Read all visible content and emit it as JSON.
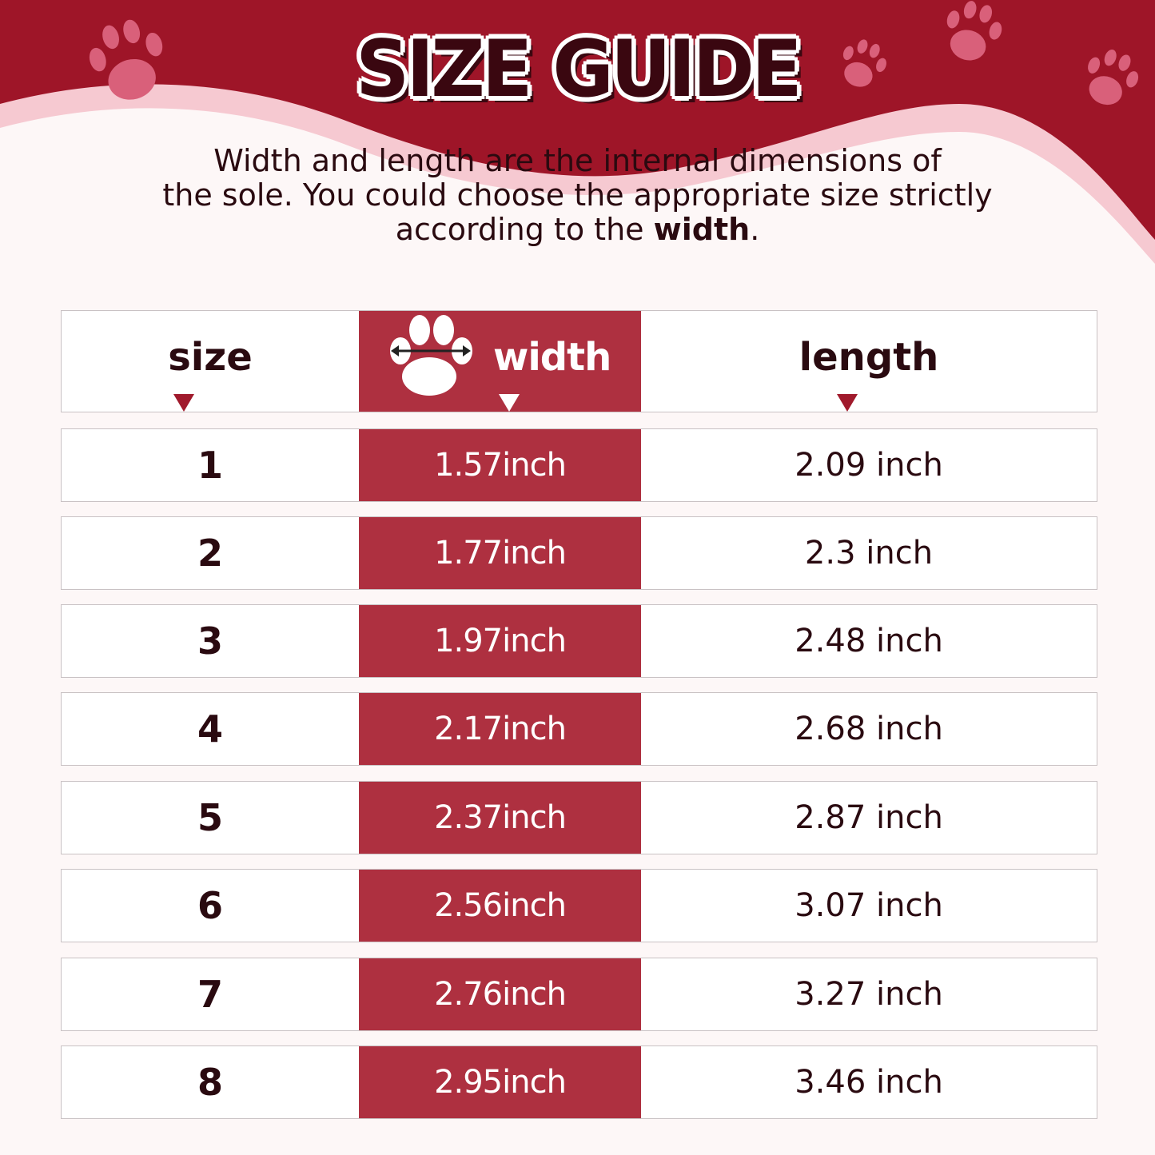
{
  "title": "SIZE GUIDE",
  "intro": {
    "line1": "Width and length are the internal dimensions of",
    "line2": "the sole. You could choose the appropriate size strictly",
    "line3_prefix": "according to the ",
    "line3_bold": "width",
    "line3_suffix": "."
  },
  "colors": {
    "brand_red": "#9e1528",
    "column_red": "#ae3040",
    "paw_pink": "#d9607a"
  },
  "table": {
    "headers": {
      "size": "size",
      "width": "width",
      "length": "length"
    },
    "width_icon": "paw-with-width-arrow-icon",
    "rows": [
      {
        "size": "1",
        "width": "1.57inch",
        "length": "2.09 inch"
      },
      {
        "size": "2",
        "width": "1.77inch",
        "length": "2.3 inch"
      },
      {
        "size": "3",
        "width": "1.97inch",
        "length": "2.48 inch"
      },
      {
        "size": "4",
        "width": "2.17inch",
        "length": "2.68 inch"
      },
      {
        "size": "5",
        "width": "2.37inch",
        "length": "2.87 inch"
      },
      {
        "size": "6",
        "width": "2.56inch",
        "length": "3.07 inch"
      },
      {
        "size": "7",
        "width": "2.76inch",
        "length": "3.27 inch"
      },
      {
        "size": "8",
        "width": "2.95inch",
        "length": "3.46 inch"
      }
    ]
  }
}
